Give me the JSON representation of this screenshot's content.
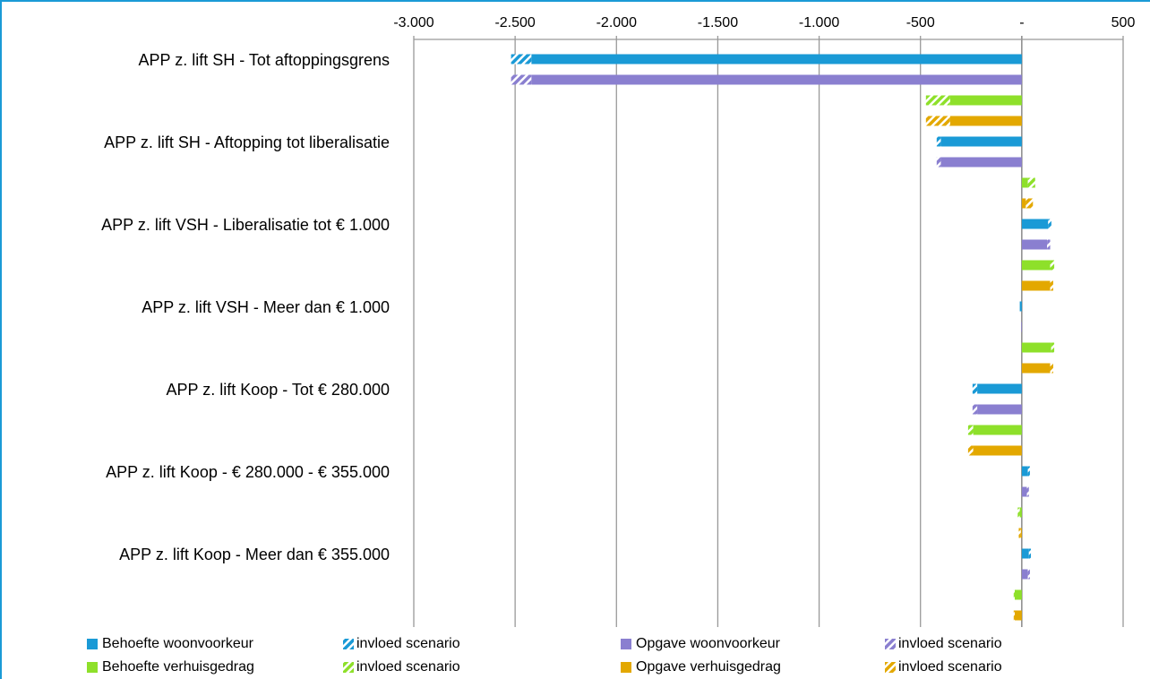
{
  "chart_data": {
    "type": "hbar",
    "categories": [
      "APP z. lift SH - Tot aftoppingsgrens",
      "APP z. lift SH - Aftopping tot liberalisatie",
      "APP z. lift VSH - Liberalisatie tot € 1.000",
      "APP z. lift VSH - Meer dan € 1.000",
      "APP z. lift Koop - Tot € 280.000",
      "APP z. lift Koop -  € 280.000 - € 355.000",
      "APP z. lift Koop - Meer dan € 355.000"
    ],
    "series": [
      {
        "name": "Behoefte woonvoorkeur",
        "color": "#1a9ad6",
        "values": [
          -2420,
          -400,
          130,
          -10,
          -220,
          30,
          35
        ],
        "scenario": {
          "name": "invloed scenario",
          "values": [
            -100,
            -20,
            16,
            0,
            -23,
            10,
            10
          ]
        }
      },
      {
        "name": "Opgave woonvoorkeur",
        "color": "#8a7fd0",
        "values": [
          -2420,
          -400,
          125,
          -3,
          -220,
          25,
          30
        ],
        "scenario": {
          "name": "invloed scenario",
          "values": [
            -100,
            -20,
            15,
            0,
            -23,
            10,
            10
          ]
        }
      },
      {
        "name": "Behoefte verhuisgedrag",
        "color": "#8ee02a",
        "values": [
          -354,
          30,
          140,
          145,
          -240,
          -10,
          -35
        ],
        "scenario": {
          "name": "invloed scenario",
          "values": [
            -119,
            36,
            20,
            15,
            -25,
            -10,
            -5
          ]
        }
      },
      {
        "name": "Opgave verhuisgedrag",
        "color": "#e3a800",
        "values": [
          -354,
          20,
          140,
          140,
          -240,
          -5,
          -35
        ],
        "scenario": {
          "name": "invloed scenario",
          "values": [
            -119,
            35,
            15,
            15,
            -25,
            -10,
            -5
          ]
        }
      }
    ],
    "xlim": [
      -3000,
      500
    ],
    "xticks": [
      {
        "value": -3000,
        "label": "-3.000"
      },
      {
        "value": -2500,
        "label": "-2.500"
      },
      {
        "value": -2000,
        "label": "-2.000"
      },
      {
        "value": -1500,
        "label": "-1.500"
      },
      {
        "value": -1000,
        "label": "-1.000"
      },
      {
        "value": -500,
        "label": "-500"
      },
      {
        "value": 0,
        "label": "-"
      },
      500
    ],
    "grid": true,
    "legend": "bottom"
  }
}
